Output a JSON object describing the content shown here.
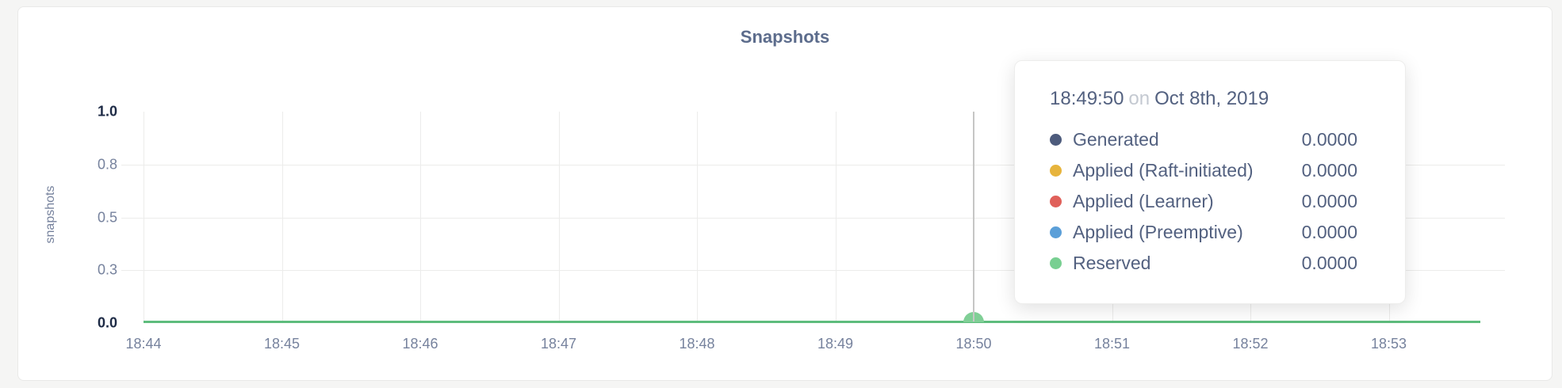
{
  "card": {
    "title": "Snapshots"
  },
  "y_axis": {
    "label": "snapshots",
    "ticks": [
      {
        "label": "1.0",
        "strong": true
      },
      {
        "label": "0.8",
        "strong": false
      },
      {
        "label": "0.5",
        "strong": false
      },
      {
        "label": "0.3",
        "strong": false
      },
      {
        "label": "0.0",
        "strong": true
      }
    ]
  },
  "x_axis": {
    "ticks": [
      "18:44",
      "18:45",
      "18:46",
      "18:47",
      "18:48",
      "18:49",
      "18:50",
      "18:51",
      "18:52",
      "18:53"
    ]
  },
  "hover": {
    "tick_index": 6
  },
  "tooltip": {
    "time": "18:49:50",
    "connector": "on",
    "date": "Oct 8th, 2019",
    "rows": [
      {
        "name": "Generated",
        "value": "0.0000",
        "color": "#4d5b7c"
      },
      {
        "name": "Applied (Raft-initiated)",
        "value": "0.0000",
        "color": "#e7b43c"
      },
      {
        "name": "Applied (Learner)",
        "value": "0.0000",
        "color": "#e0605a"
      },
      {
        "name": "Applied (Preemptive)",
        "value": "0.0000",
        "color": "#5b9fd8"
      },
      {
        "name": "Reserved",
        "value": "0.0000",
        "color": "#78cf91"
      }
    ]
  },
  "colors": {
    "title": "#5c6c8c",
    "series_line": "#5ebc7d",
    "hover_dot": "#80cf96",
    "crosshair": "#c6c6c5",
    "tick_strong": "#1d2a45",
    "tick_muted": "#76829d"
  },
  "chart_data": {
    "type": "line",
    "title": "Snapshots",
    "xlabel": "",
    "ylabel": "snapshots",
    "x": [
      "18:44",
      "18:45",
      "18:46",
      "18:47",
      "18:48",
      "18:49",
      "18:50",
      "18:51",
      "18:52",
      "18:53"
    ],
    "ylim": [
      0,
      1
    ],
    "ytick_values": [
      1.0,
      0.75,
      0.5,
      0.25,
      0.0
    ],
    "ytick_labels": [
      "1.0",
      "0.8",
      "0.5",
      "0.3",
      "0.0"
    ],
    "grid": true,
    "legend_position": "tooltip-overlay",
    "series": [
      {
        "name": "Generated",
        "color": "#4d5b7c",
        "values": [
          0,
          0,
          0,
          0,
          0,
          0,
          0,
          0,
          0,
          0
        ]
      },
      {
        "name": "Applied (Raft-initiated)",
        "color": "#e7b43c",
        "values": [
          0,
          0,
          0,
          0,
          0,
          0,
          0,
          0,
          0,
          0
        ]
      },
      {
        "name": "Applied (Learner)",
        "color": "#e0605a",
        "values": [
          0,
          0,
          0,
          0,
          0,
          0,
          0,
          0,
          0,
          0
        ]
      },
      {
        "name": "Applied (Preemptive)",
        "color": "#5b9fd8",
        "values": [
          0,
          0,
          0,
          0,
          0,
          0,
          0,
          0,
          0,
          0
        ]
      },
      {
        "name": "Reserved",
        "color": "#78cf91",
        "values": [
          0,
          0,
          0,
          0,
          0,
          0,
          0,
          0,
          0,
          0
        ]
      }
    ],
    "hover_point": {
      "time": "18:49:50",
      "date": "Oct 8th, 2019",
      "values": {
        "Generated": "0.0000",
        "Applied (Raft-initiated)": "0.0000",
        "Applied (Learner)": "0.0000",
        "Applied (Preemptive)": "0.0000",
        "Reserved": "0.0000"
      }
    }
  }
}
